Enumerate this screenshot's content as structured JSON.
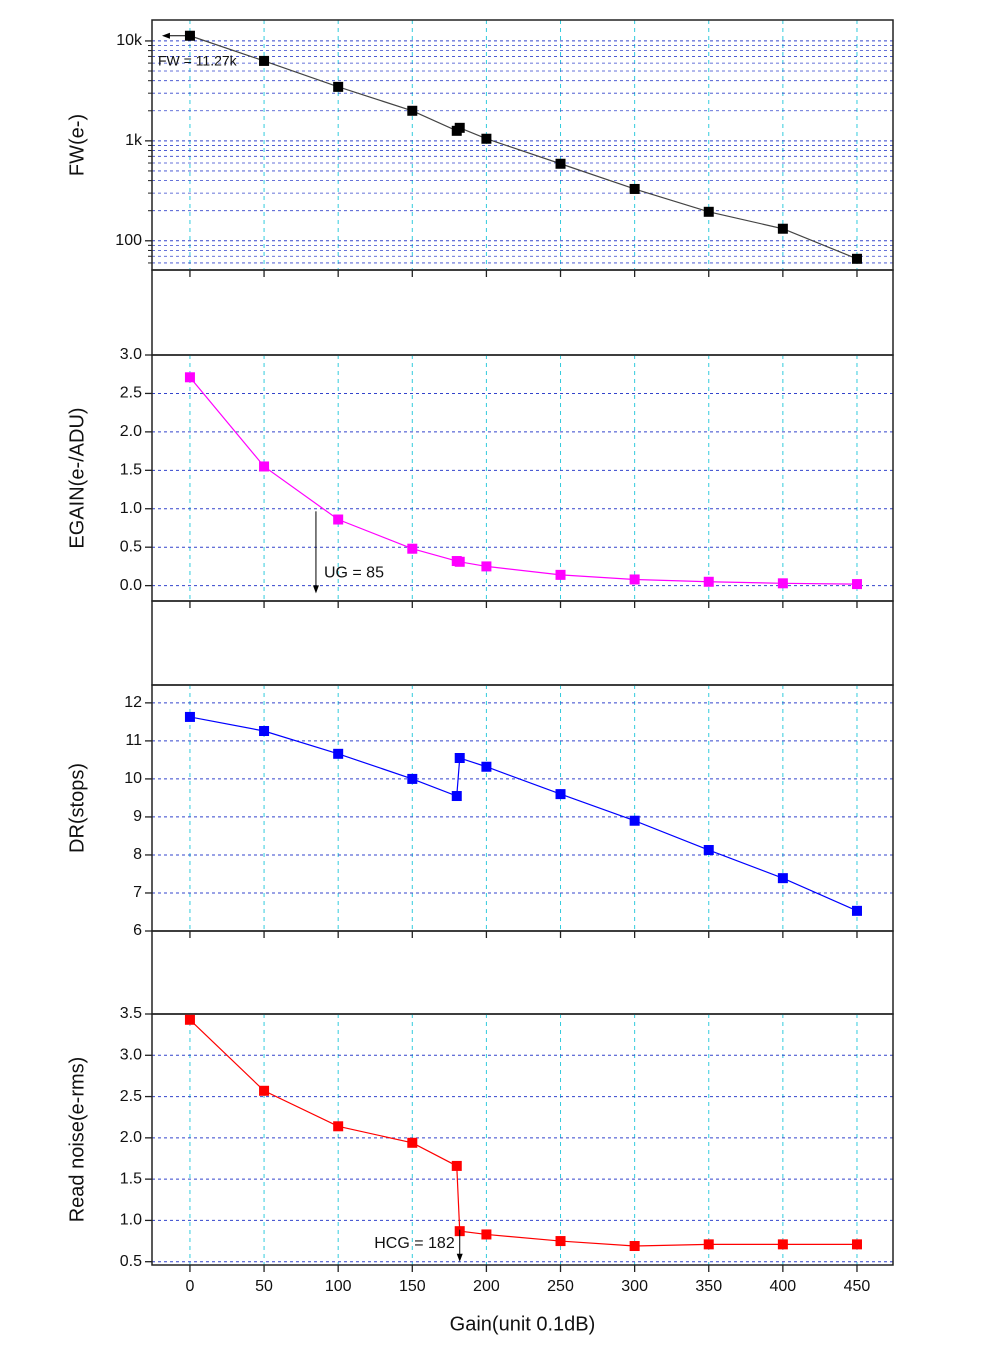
{
  "chart_data": [
    {
      "type": "line",
      "y_label": "FW(e-)",
      "log_y": true,
      "color": "#000000",
      "line_color": "#444444",
      "x": [
        0,
        50,
        100,
        150,
        180,
        182,
        200,
        250,
        300,
        350,
        400,
        450
      ],
      "values": [
        11270,
        6310,
        3470,
        2000,
        1260,
        1350,
        1050,
        590,
        330,
        195,
        132,
        66
      ],
      "xlim": [
        -25.6,
        474.3
      ],
      "xticks": [
        0,
        50,
        100,
        150,
        200,
        250,
        300,
        350,
        400,
        450
      ],
      "ylim": [
        51,
        16200
      ],
      "yticks": [
        {
          "value": 10000,
          "label": "10k"
        },
        {
          "value": 1000,
          "label": "1k"
        },
        100
      ],
      "minor_yticks": [
        60,
        70,
        80,
        90,
        200,
        300,
        400,
        500,
        600,
        700,
        800,
        900,
        2000,
        3000,
        4000,
        5000,
        6000,
        7000,
        8000,
        9000
      ],
      "grid": true,
      "annotations": [
        {
          "text": "FW = 11.27k",
          "x": 0,
          "y": 11270,
          "dir": "left"
        }
      ]
    },
    {
      "type": "line",
      "y_label": "EGAIN(e-/ADU)",
      "color": "#ff00ff",
      "line_color": "#ff00ff",
      "x": [
        0,
        50,
        100,
        150,
        180,
        182,
        200,
        250,
        300,
        350,
        400,
        450
      ],
      "values": [
        2.71,
        1.55,
        0.86,
        0.48,
        0.32,
        0.31,
        0.25,
        0.14,
        0.08,
        0.05,
        0.03,
        0.02
      ],
      "xlim": [
        -25.6,
        474.3
      ],
      "xticks": [
        0,
        50,
        100,
        150,
        200,
        250,
        300,
        350,
        400,
        450
      ],
      "ylim": [
        -0.2,
        3.0
      ],
      "yticks": [
        {
          "value": 0,
          "label": "0.0"
        },
        0.5,
        {
          "value": 1,
          "label": "1.0"
        },
        1.5,
        {
          "value": 2,
          "label": "2.0"
        },
        2.5,
        {
          "value": 3,
          "label": "3.0"
        }
      ],
      "grid": true,
      "annotations": [
        {
          "text": "UG = 85",
          "x": 85,
          "y": -0.1,
          "dir": "down"
        }
      ]
    },
    {
      "type": "line",
      "y_label": "DR(stops)",
      "color": "#0000ff",
      "line_color": "#0000ff",
      "x": [
        0,
        50,
        100,
        150,
        180,
        182,
        200,
        250,
        300,
        350,
        400,
        450
      ],
      "values": [
        11.63,
        11.26,
        10.66,
        10.0,
        9.55,
        10.55,
        10.32,
        9.6,
        8.9,
        8.13,
        7.39,
        6.53
      ],
      "xlim": [
        -25.6,
        474.3
      ],
      "xticks": [
        0,
        50,
        100,
        150,
        200,
        250,
        300,
        350,
        400,
        450
      ],
      "ylim": [
        6,
        12.47
      ],
      "yticks": [
        6,
        7,
        8,
        9,
        10,
        11,
        12
      ],
      "grid": true,
      "annotations": []
    },
    {
      "type": "line",
      "y_label": "Read noise(e-rms)",
      "x_label": "Gain(unit 0.1dB)",
      "show_x_labels": true,
      "color": "#ff0000",
      "line_color": "#ff0000",
      "x": [
        0,
        50,
        100,
        150,
        180,
        182,
        200,
        250,
        300,
        350,
        400,
        450
      ],
      "values": [
        3.43,
        2.57,
        2.14,
        1.94,
        1.66,
        0.87,
        0.83,
        0.75,
        0.69,
        0.71,
        0.71,
        0.71
      ],
      "xlim": [
        -25.6,
        474.3
      ],
      "xticks": [
        0,
        50,
        100,
        150,
        200,
        250,
        300,
        350,
        400,
        450
      ],
      "ylim": [
        0.46,
        3.5
      ],
      "yticks": [
        0.5,
        {
          "value": 1,
          "label": "1.0"
        },
        1.5,
        {
          "value": 2,
          "label": "2.0"
        },
        2.5,
        {
          "value": 3,
          "label": "3.0"
        },
        3.5
      ],
      "grid": true,
      "annotations": [
        {
          "text": "HCG = 182",
          "x": 182,
          "y": 0.5,
          "dir": "down"
        }
      ]
    }
  ]
}
